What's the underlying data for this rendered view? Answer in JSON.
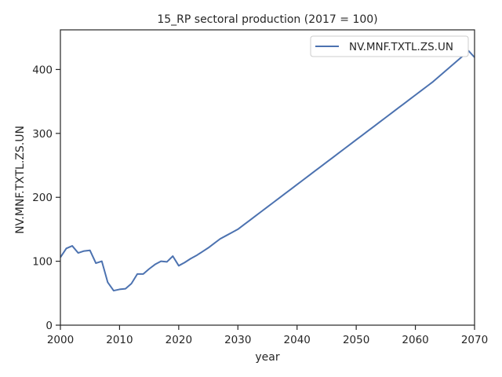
{
  "chart_data": {
    "type": "line",
    "title": "15_RP sectoral production (2017 = 100)",
    "xlabel": "year",
    "ylabel": "NV.MNF.TXTL.ZS.UN",
    "xlim": [
      2000,
      2070
    ],
    "ylim": [
      0,
      462
    ],
    "xticks": [
      2000,
      2010,
      2020,
      2030,
      2040,
      2050,
      2060,
      2070
    ],
    "yticks": [
      0,
      100,
      200,
      300,
      400
    ],
    "grid": false,
    "legend_position": "top-right",
    "series": [
      {
        "name": "NV.MNF.TXTL.ZS.UN",
        "color": "#4c72b0",
        "x": [
          2000,
          2001,
          2002,
          2003,
          2004,
          2005,
          2006,
          2007,
          2008,
          2009,
          2010,
          2011,
          2012,
          2013,
          2014,
          2015,
          2016,
          2017,
          2018,
          2019,
          2020,
          2021,
          2022,
          2023,
          2024,
          2025,
          2026,
          2027,
          2028,
          2029,
          2030,
          2031,
          2032,
          2033,
          2034,
          2035,
          2036,
          2037,
          2038,
          2039,
          2040,
          2041,
          2042,
          2043,
          2044,
          2045,
          2046,
          2047,
          2048,
          2049,
          2050,
          2051,
          2052,
          2053,
          2054,
          2055,
          2056,
          2057,
          2058,
          2059,
          2060,
          2061,
          2062,
          2063,
          2064,
          2065,
          2066,
          2067,
          2068,
          2069,
          2070
        ],
        "y": [
          106,
          120,
          124,
          113,
          116,
          117,
          97,
          100,
          67,
          54,
          56,
          57,
          65,
          80,
          80,
          88,
          95,
          100,
          99,
          108,
          93,
          98,
          104,
          109,
          115,
          121,
          128,
          135,
          140,
          145,
          150,
          157,
          164,
          171,
          178,
          185,
          192,
          199,
          206,
          213,
          220,
          227,
          234,
          241,
          248,
          255,
          262,
          269,
          276,
          283,
          290,
          297,
          304,
          311,
          318,
          325,
          332,
          339,
          346,
          353,
          360,
          367,
          374,
          381,
          389,
          397,
          405,
          413,
          421,
          429,
          419
        ]
      }
    ]
  }
}
